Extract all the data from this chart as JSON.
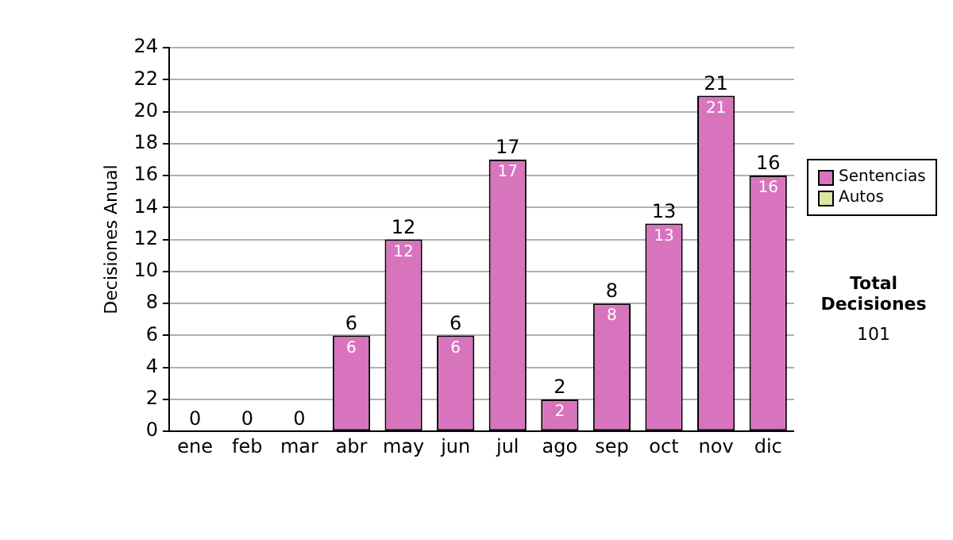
{
  "chart_data": {
    "type": "bar",
    "ylabel": "Decisiones Anual",
    "categories": [
      "ene",
      "feb",
      "mar",
      "abr",
      "may",
      "jun",
      "jul",
      "ago",
      "sep",
      "oct",
      "nov",
      "dic"
    ],
    "series": [
      {
        "name": "Sentencias",
        "color": "#d874bd",
        "values": [
          0,
          0,
          0,
          6,
          12,
          6,
          17,
          2,
          8,
          13,
          21,
          16
        ],
        "value_labels": [
          null,
          null,
          null,
          "6",
          "12",
          "6",
          "17",
          "2",
          "8",
          "13",
          "21",
          "16"
        ]
      },
      {
        "name": "Autos",
        "color": "#d9e8a1",
        "values": [
          0,
          0,
          0,
          0,
          0,
          0,
          0,
          0,
          0,
          0,
          0,
          0
        ]
      }
    ],
    "stacked": true,
    "totals": [
      "0",
      "0",
      "0",
      "6",
      "12",
      "6",
      "17",
      "2",
      "8",
      "13",
      "21",
      "16"
    ],
    "ylim": [
      0,
      24
    ],
    "yticks": [
      0,
      2,
      4,
      6,
      8,
      10,
      12,
      14,
      16,
      18,
      20,
      22,
      24
    ],
    "grid": "y",
    "legend": "right",
    "annotations": [
      "Total Decisiones",
      "101"
    ]
  }
}
